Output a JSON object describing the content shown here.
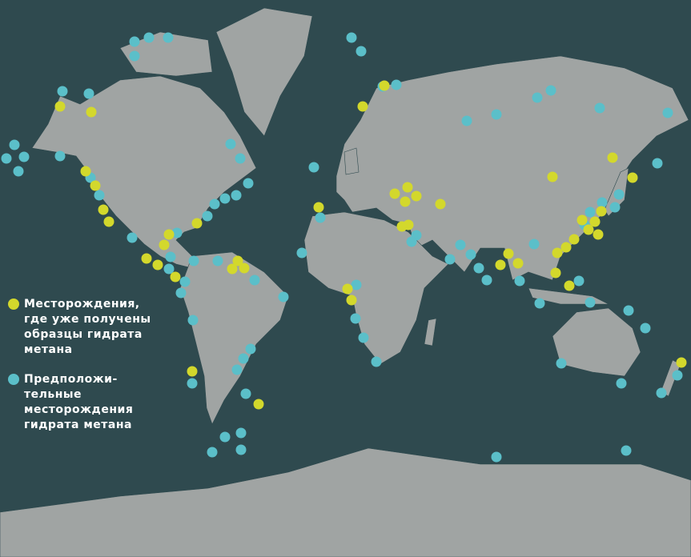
{
  "colors": {
    "ocean": "#2f4a4f",
    "land": "#a0a4a3",
    "border": "#2f4a4f",
    "confirmed": "#d3d82c",
    "presumed": "#5bbfc9"
  },
  "legend": {
    "confirmed": {
      "label": "Месторождения,\nгде уже получены\nобразцы гидрата\nметана",
      "icon": "yellow-dot"
    },
    "presumed": {
      "label": "Предположи-\nтельные\nместорождения\nгидрата метана",
      "icon": "cyan-dot"
    }
  }
}
